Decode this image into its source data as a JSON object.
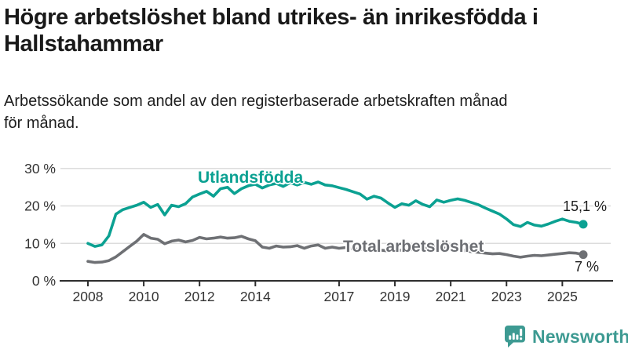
{
  "header": {
    "title_lines": [
      "Högre arbetslöshet bland utrikes- än inrikesfödda i",
      "Hallstahammar"
    ],
    "subtitle_lines": [
      "Arbetssökande som andel av den registerbaserade arbetskraften månad",
      "för månad."
    ]
  },
  "colors": {
    "foreign_born_line": "#0ba192",
    "total_line": "#6e7074",
    "axis": "#2e2e2e",
    "gridline": "#dcdcdc",
    "text": "#333333",
    "logo_teal": "#3d9a92"
  },
  "branding": {
    "logo_text": "Newsworthy",
    "logo_icon": "speech-bubble-bar-chart-icon"
  },
  "chart_data": {
    "type": "line",
    "title": "Högre arbetslöshet bland utrikes- än inrikesfödda i Hallstahammar",
    "subtitle": "Arbetssökande som andel av den registerbaserade arbetskraften månad för månad.",
    "xlabel": "",
    "ylabel": "",
    "ylim": [
      0,
      30
    ],
    "xlim": [
      2008,
      2026
    ],
    "grid": true,
    "legend_position": "inline-labels",
    "y_ticks": [
      {
        "value": 0,
        "label": "0 %"
      },
      {
        "value": 10,
        "label": "10 %"
      },
      {
        "value": 20,
        "label": "20 %"
      },
      {
        "value": 30,
        "label": "30 %"
      }
    ],
    "x_ticks": [
      {
        "year": 2008,
        "label": "2008"
      },
      {
        "year": 2010,
        "label": "2010"
      },
      {
        "year": 2012,
        "label": "2012"
      },
      {
        "year": 2014,
        "label": "2014"
      },
      {
        "year": 2017,
        "label": "2017"
      },
      {
        "year": 2019,
        "label": "2019"
      },
      {
        "year": 2021,
        "label": "2021"
      },
      {
        "year": 2023,
        "label": "2023"
      },
      {
        "year": 2025,
        "label": "2025"
      }
    ],
    "series": [
      {
        "name": "Utlandsfödda",
        "color": "#0ba192",
        "end_label": "15,1 %",
        "end_value": 15.1,
        "points": [
          [
            2008.0,
            10.0
          ],
          [
            2008.25,
            9.2
          ],
          [
            2008.5,
            9.6
          ],
          [
            2008.75,
            12.0
          ],
          [
            2009.0,
            17.8
          ],
          [
            2009.25,
            19.0
          ],
          [
            2009.5,
            19.6
          ],
          [
            2009.75,
            20.2
          ],
          [
            2010.0,
            21.0
          ],
          [
            2010.25,
            19.6
          ],
          [
            2010.5,
            20.4
          ],
          [
            2010.75,
            17.6
          ],
          [
            2011.0,
            20.2
          ],
          [
            2011.25,
            19.8
          ],
          [
            2011.5,
            20.6
          ],
          [
            2011.75,
            22.4
          ],
          [
            2012.0,
            23.2
          ],
          [
            2012.25,
            23.9
          ],
          [
            2012.5,
            22.6
          ],
          [
            2012.75,
            24.6
          ],
          [
            2013.0,
            25.0
          ],
          [
            2013.25,
            23.3
          ],
          [
            2013.5,
            24.6
          ],
          [
            2013.75,
            25.4
          ],
          [
            2014.0,
            25.8
          ],
          [
            2014.25,
            24.8
          ],
          [
            2014.5,
            25.6
          ],
          [
            2014.75,
            26.0
          ],
          [
            2015.0,
            25.2
          ],
          [
            2015.25,
            26.2
          ],
          [
            2015.5,
            25.6
          ],
          [
            2015.75,
            26.3
          ],
          [
            2016.0,
            25.8
          ],
          [
            2016.25,
            26.4
          ],
          [
            2016.5,
            25.6
          ],
          [
            2016.75,
            25.4
          ],
          [
            2017.0,
            24.9
          ],
          [
            2017.25,
            24.4
          ],
          [
            2017.5,
            23.8
          ],
          [
            2017.75,
            23.2
          ],
          [
            2018.0,
            21.8
          ],
          [
            2018.25,
            22.6
          ],
          [
            2018.5,
            22.1
          ],
          [
            2018.75,
            20.8
          ],
          [
            2019.0,
            19.6
          ],
          [
            2019.25,
            20.6
          ],
          [
            2019.5,
            20.2
          ],
          [
            2019.75,
            21.4
          ],
          [
            2020.0,
            20.4
          ],
          [
            2020.25,
            19.8
          ],
          [
            2020.5,
            21.6
          ],
          [
            2020.75,
            21.0
          ],
          [
            2021.0,
            21.5
          ],
          [
            2021.25,
            21.9
          ],
          [
            2021.5,
            21.5
          ],
          [
            2021.75,
            20.9
          ],
          [
            2022.0,
            20.3
          ],
          [
            2022.25,
            19.4
          ],
          [
            2022.5,
            18.6
          ],
          [
            2022.75,
            17.8
          ],
          [
            2023.0,
            16.5
          ],
          [
            2023.25,
            15.0
          ],
          [
            2023.5,
            14.5
          ],
          [
            2023.75,
            15.6
          ],
          [
            2024.0,
            14.9
          ],
          [
            2024.25,
            14.6
          ],
          [
            2024.5,
            15.2
          ],
          [
            2024.75,
            15.9
          ],
          [
            2025.0,
            16.5
          ],
          [
            2025.25,
            15.9
          ],
          [
            2025.5,
            15.6
          ],
          [
            2025.75,
            15.1
          ]
        ]
      },
      {
        "name": "Total arbetslöshet",
        "color": "#6e7074",
        "end_label": "7 %",
        "end_value": 7.0,
        "points": [
          [
            2008.0,
            5.2
          ],
          [
            2008.25,
            4.9
          ],
          [
            2008.5,
            5.0
          ],
          [
            2008.75,
            5.4
          ],
          [
            2009.0,
            6.4
          ],
          [
            2009.25,
            7.8
          ],
          [
            2009.5,
            9.2
          ],
          [
            2009.75,
            10.6
          ],
          [
            2010.0,
            12.4
          ],
          [
            2010.25,
            11.4
          ],
          [
            2010.5,
            11.1
          ],
          [
            2010.75,
            9.9
          ],
          [
            2011.0,
            10.6
          ],
          [
            2011.25,
            10.9
          ],
          [
            2011.5,
            10.4
          ],
          [
            2011.75,
            10.8
          ],
          [
            2012.0,
            11.6
          ],
          [
            2012.25,
            11.2
          ],
          [
            2012.5,
            11.4
          ],
          [
            2012.75,
            11.7
          ],
          [
            2013.0,
            11.4
          ],
          [
            2013.25,
            11.5
          ],
          [
            2013.5,
            11.9
          ],
          [
            2013.75,
            11.2
          ],
          [
            2014.0,
            10.7
          ],
          [
            2014.25,
            9.0
          ],
          [
            2014.5,
            8.7
          ],
          [
            2014.75,
            9.3
          ],
          [
            2015.0,
            9.0
          ],
          [
            2015.25,
            9.1
          ],
          [
            2015.5,
            9.4
          ],
          [
            2015.75,
            8.7
          ],
          [
            2016.0,
            9.3
          ],
          [
            2016.25,
            9.6
          ],
          [
            2016.5,
            8.7
          ],
          [
            2016.75,
            9.0
          ],
          [
            2017.0,
            8.7
          ],
          [
            2017.25,
            8.9
          ],
          [
            2017.5,
            8.6
          ],
          [
            2017.75,
            8.4
          ],
          [
            2018.0,
            8.3
          ],
          [
            2018.25,
            8.5
          ],
          [
            2018.5,
            8.2
          ],
          [
            2018.75,
            8.0
          ],
          [
            2019.0,
            8.1
          ],
          [
            2019.25,
            8.2
          ],
          [
            2019.5,
            8.3
          ],
          [
            2019.75,
            8.4
          ],
          [
            2020.0,
            8.5
          ],
          [
            2020.25,
            9.3
          ],
          [
            2020.5,
            9.1
          ],
          [
            2020.75,
            8.8
          ],
          [
            2021.0,
            8.6
          ],
          [
            2021.25,
            8.4
          ],
          [
            2021.5,
            8.1
          ],
          [
            2021.75,
            7.8
          ],
          [
            2022.0,
            7.6
          ],
          [
            2022.25,
            7.4
          ],
          [
            2022.5,
            7.2
          ],
          [
            2022.75,
            7.3
          ],
          [
            2023.0,
            7.0
          ],
          [
            2023.25,
            6.6
          ],
          [
            2023.5,
            6.3
          ],
          [
            2023.75,
            6.6
          ],
          [
            2024.0,
            6.8
          ],
          [
            2024.25,
            6.7
          ],
          [
            2024.5,
            6.9
          ],
          [
            2024.75,
            7.1
          ],
          [
            2025.0,
            7.3
          ],
          [
            2025.25,
            7.5
          ],
          [
            2025.5,
            7.4
          ],
          [
            2025.75,
            7.0
          ]
        ]
      }
    ]
  }
}
